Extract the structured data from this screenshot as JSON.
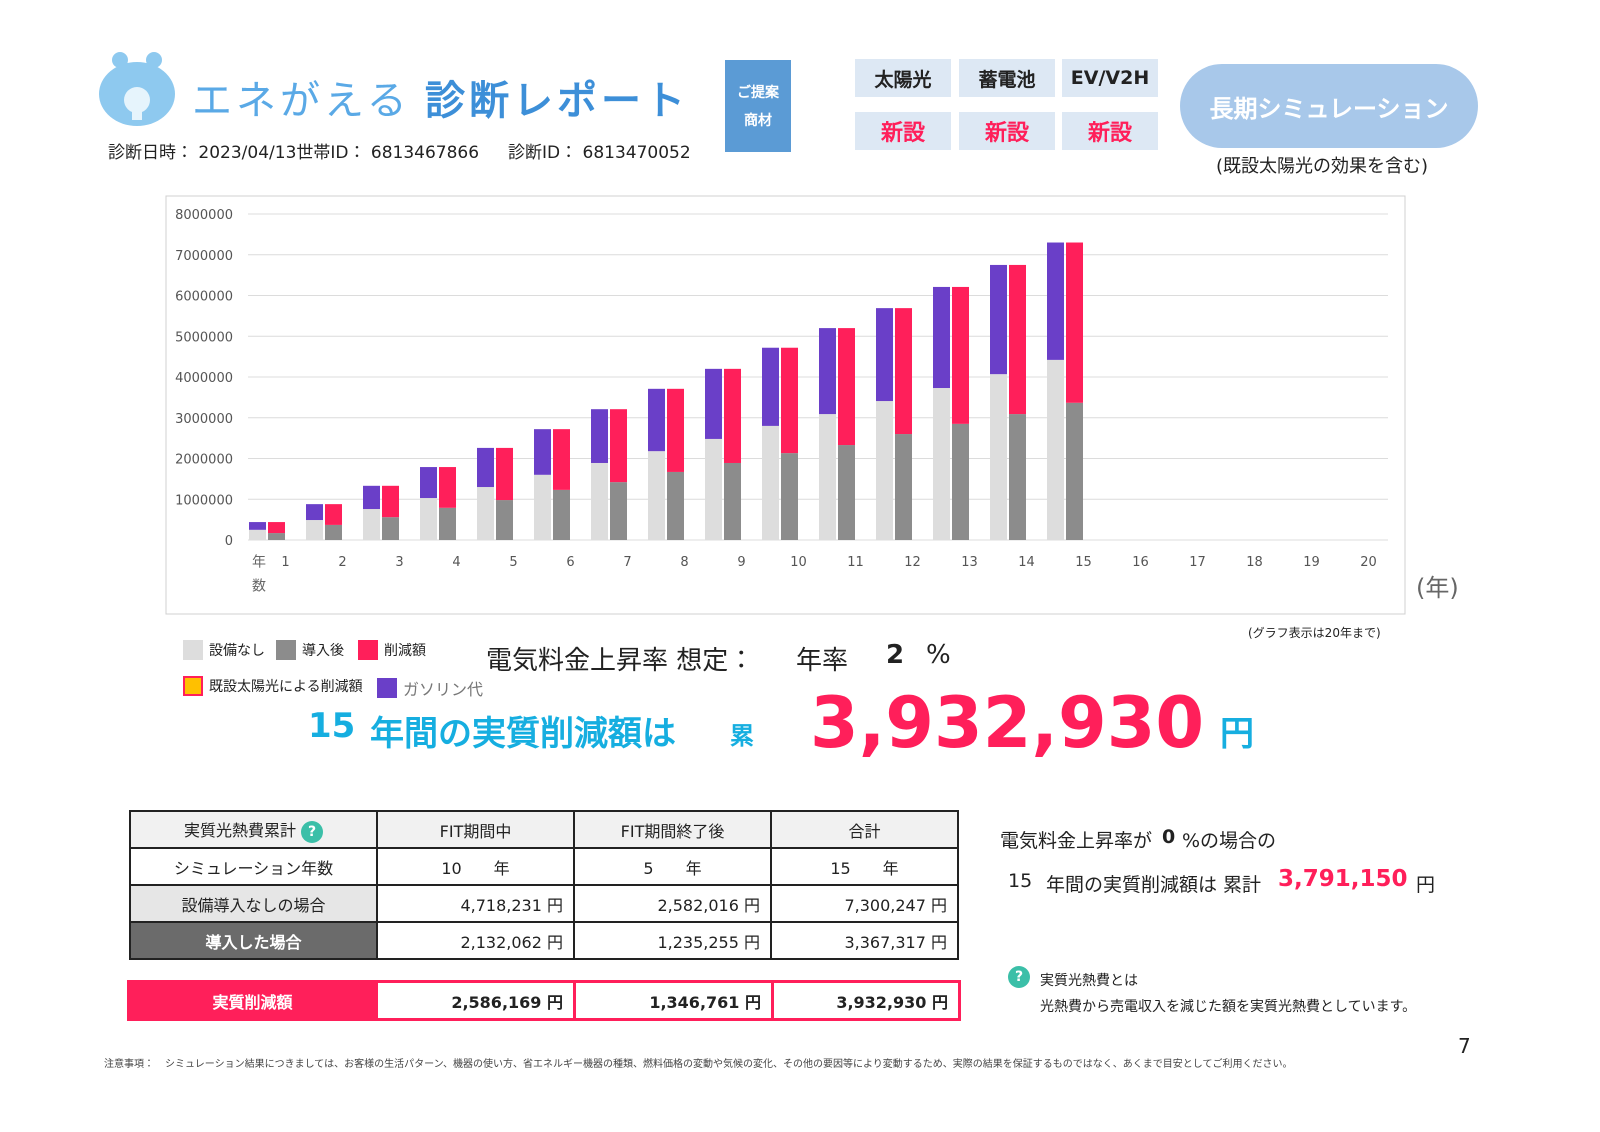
{
  "header": {
    "brand": "エネがえる",
    "report": "診断レポート",
    "info": "診断日時： 2023/04/13世帯ID： 6813467866",
    "diagnosis_id": "診断ID： 6813470052",
    "proposal": [
      "ご提案",
      "商材"
    ]
  },
  "products": [
    {
      "name": "太陽光",
      "status": "新設"
    },
    {
      "name": "蓄電池",
      "status": "新設"
    },
    {
      "name": "EV/V2H",
      "status": "新設"
    }
  ],
  "long_sim": {
    "button": "長期シミュレーション",
    "note": "(既設太陽光の効果を含む)"
  },
  "chart_data": {
    "type": "bar",
    "x_label": "年数",
    "x_unit": "(年)",
    "note": "(グラフ表示は20年まで)",
    "categories": [
      "1",
      "2",
      "3",
      "4",
      "5",
      "6",
      "7",
      "8",
      "9",
      "10",
      "11",
      "12",
      "13",
      "14",
      "15",
      "16",
      "17",
      "18",
      "19",
      "20"
    ],
    "ylim": [
      0,
      8000000
    ],
    "yticks": [
      0,
      1000000,
      2000000,
      3000000,
      4000000,
      5000000,
      6000000,
      7000000,
      8000000
    ],
    "grid": true,
    "series": [
      {
        "name": "設備なし",
        "color": "#dddddd",
        "stack": "left",
        "values": [
          250000,
          490000,
          760000,
          1030000,
          1300000,
          1600000,
          1890000,
          2180000,
          2480000,
          2800000,
          3090000,
          3410000,
          3730000,
          4070000,
          4420000,
          null,
          null,
          null,
          null,
          null
        ]
      },
      {
        "name": "導入後",
        "color": "#8c8c8c",
        "stack": "right",
        "values": [
          170000,
          370000,
          560000,
          790000,
          980000,
          1230000,
          1420000,
          1670000,
          1890000,
          2132062,
          2330000,
          2600000,
          2850000,
          3090000,
          3367317,
          null,
          null,
          null,
          null,
          null
        ]
      },
      {
        "name": "削減額",
        "color": "#ff1f5a",
        "stack": "right",
        "values": [
          270000,
          510000,
          770000,
          1000000,
          1280000,
          1490000,
          1790000,
          2040000,
          2310000,
          2586169,
          2870000,
          3090000,
          3360000,
          3660000,
          3932930,
          null,
          null,
          null,
          null,
          null
        ]
      },
      {
        "name": "既設太陽光による削減額",
        "color": "#ffc000",
        "stack": "right",
        "values": [
          null,
          null,
          null,
          null,
          null,
          null,
          null,
          null,
          null,
          null,
          null,
          null,
          null,
          null,
          null,
          null,
          null,
          null,
          null,
          null
        ]
      },
      {
        "name": "ガソリン代",
        "color": "#6a3fc8",
        "stack": "left",
        "values": [
          190000,
          390000,
          570000,
          760000,
          960000,
          1120000,
          1320000,
          1530000,
          1720000,
          1918231,
          2110000,
          2280000,
          2480000,
          2680000,
          2880247,
          null,
          null,
          null,
          null,
          null
        ]
      }
    ]
  },
  "rate": {
    "label": "電気料金上昇率 想定：",
    "annual": "年率",
    "value": 2,
    "unit": "%"
  },
  "summary": {
    "years": 15,
    "text": "年間の実質削減額は",
    "cumulative": "累",
    "amount": "3,932,930",
    "unit": "円"
  },
  "table": {
    "header": [
      "実質光熱費累計",
      "FIT期間中",
      "FIT期間終了後",
      "合計"
    ],
    "rows": [
      [
        "シミュレーション年数",
        "10　　年",
        "5　　年",
        "15　　年"
      ],
      [
        "設備導入なしの場合",
        "4,718,231 円",
        "2,582,016 円",
        "7,300,247 円"
      ],
      [
        "導入した場合",
        "2,132,062 円",
        "1,235,255 円",
        "3,367,317 円"
      ]
    ],
    "total": [
      "実質削減額",
      "2,586,169 円",
      "1,346,761 円",
      "3,932,930 円"
    ]
  },
  "alt_case": {
    "prefix": "電気料金上昇率が",
    "rate": 0,
    "suffix": "%の場合の",
    "years": 15,
    "text": "年間の実質削減額は 累計",
    "amount": "3,791,150",
    "unit": "円"
  },
  "help": {
    "icon": "?",
    "title": "実質光熱費とは",
    "text": "光熱費から売電収入を減じた額を実質光熱費としています。"
  },
  "footer": {
    "label": "注意事項：",
    "text": "シミュレーション結果につきましては、お客様の生活パターン、機器の使い方、省エネルギー機器の種類、燃料価格の変動や気候の変化、その他の要因等により変動するため、実際の結果を保証するものではなく、あくまで目安としてご利用ください。",
    "page": 7
  }
}
